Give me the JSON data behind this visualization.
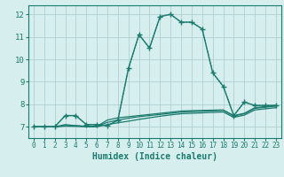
{
  "xlabel": "Humidex (Indice chaleur)",
  "xlim": [
    -0.5,
    23.5
  ],
  "ylim": [
    6.5,
    12.4
  ],
  "yticks": [
    7,
    8,
    9,
    10,
    11,
    12
  ],
  "xticks": [
    0,
    1,
    2,
    3,
    4,
    5,
    6,
    7,
    8,
    9,
    10,
    11,
    12,
    13,
    14,
    15,
    16,
    17,
    18,
    19,
    20,
    21,
    22,
    23
  ],
  "bg_color": "#d6eeee",
  "grid_color": "#b0d0d0",
  "line_color": "#1a7a6e",
  "lines": [
    {
      "x": [
        0,
        1,
        2,
        3,
        4,
        5,
        6,
        7,
        8,
        9,
        10,
        11,
        12,
        13,
        14,
        15,
        16,
        17,
        18,
        19,
        20,
        21,
        22,
        23
      ],
      "y": [
        7.0,
        7.0,
        7.0,
        7.5,
        7.5,
        7.1,
        7.1,
        7.05,
        7.3,
        9.6,
        11.1,
        10.5,
        11.9,
        12.0,
        11.65,
        11.65,
        11.35,
        9.4,
        8.8,
        7.5,
        8.1,
        7.95,
        7.95,
        7.95
      ],
      "style": "-",
      "marker": "+",
      "lw": 1.0,
      "ms": 4
    },
    {
      "x": [
        0,
        1,
        2,
        3,
        4,
        5,
        6,
        7,
        8,
        9,
        10,
        11,
        12,
        13,
        14,
        15,
        16,
        17,
        18,
        19,
        20,
        21,
        22,
        23
      ],
      "y": [
        7.0,
        7.0,
        7.0,
        7.5,
        7.5,
        7.1,
        7.1,
        7.05,
        7.3,
        9.6,
        11.1,
        10.5,
        11.9,
        12.0,
        11.65,
        11.65,
        11.35,
        9.4,
        8.8,
        7.5,
        8.1,
        7.95,
        7.95,
        7.95
      ],
      "style": ":",
      "marker": null,
      "lw": 0.9,
      "ms": 0
    },
    {
      "x": [
        0,
        1,
        2,
        3,
        4,
        5,
        6,
        7,
        8,
        9,
        10,
        11,
        12,
        13,
        14,
        15,
        16,
        17,
        18,
        19,
        20,
        21,
        22,
        23
      ],
      "y": [
        7.0,
        7.0,
        7.0,
        7.1,
        7.05,
        7.02,
        7.02,
        7.3,
        7.4,
        7.45,
        7.5,
        7.55,
        7.6,
        7.65,
        7.7,
        7.72,
        7.73,
        7.74,
        7.75,
        7.5,
        7.6,
        7.85,
        7.9,
        7.95
      ],
      "style": "-",
      "marker": null,
      "lw": 0.9,
      "ms": 0
    },
    {
      "x": [
        0,
        1,
        2,
        3,
        4,
        5,
        6,
        7,
        8,
        9,
        10,
        11,
        12,
        13,
        14,
        15,
        16,
        17,
        18,
        19,
        20,
        21,
        22,
        23
      ],
      "y": [
        7.0,
        7.0,
        7.0,
        7.05,
        7.05,
        7.02,
        7.02,
        7.2,
        7.3,
        7.38,
        7.45,
        7.5,
        7.55,
        7.6,
        7.65,
        7.67,
        7.69,
        7.71,
        7.73,
        7.48,
        7.58,
        7.82,
        7.87,
        7.92
      ],
      "style": "-",
      "marker": null,
      "lw": 0.9,
      "ms": 0
    },
    {
      "x": [
        0,
        1,
        2,
        3,
        4,
        5,
        6,
        7,
        8,
        9,
        10,
        11,
        12,
        13,
        14,
        15,
        16,
        17,
        18,
        19,
        20,
        21,
        22,
        23
      ],
      "y": [
        7.0,
        7.0,
        7.0,
        7.03,
        7.02,
        7.0,
        7.0,
        7.1,
        7.18,
        7.25,
        7.33,
        7.4,
        7.47,
        7.53,
        7.58,
        7.6,
        7.62,
        7.64,
        7.66,
        7.42,
        7.52,
        7.75,
        7.8,
        7.85
      ],
      "style": "-",
      "marker": null,
      "lw": 0.9,
      "ms": 0
    }
  ]
}
